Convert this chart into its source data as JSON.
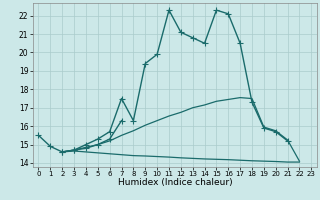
{
  "title": "",
  "xlabel": "Humidex (Indice chaleur)",
  "bg_color": "#cce8e8",
  "grid_color": "#aacccc",
  "line_color": "#1a6b6b",
  "xlim": [
    -0.5,
    23.5
  ],
  "ylim": [
    13.8,
    22.7
  ],
  "xticks": [
    0,
    1,
    2,
    3,
    4,
    5,
    6,
    7,
    8,
    9,
    10,
    11,
    12,
    13,
    14,
    15,
    16,
    17,
    18,
    19,
    20,
    21,
    22,
    23
  ],
  "yticks": [
    14,
    15,
    16,
    17,
    18,
    19,
    20,
    21,
    22
  ],
  "series": [
    {
      "x": [
        0,
        1,
        2,
        3,
        4,
        5,
        6,
        7,
        8,
        9,
        10,
        11,
        12,
        13,
        14,
        15,
        16,
        17,
        18,
        19,
        20,
        21
      ],
      "y": [
        15.5,
        14.9,
        14.6,
        14.7,
        15.0,
        15.3,
        15.7,
        17.5,
        16.3,
        19.4,
        19.9,
        22.3,
        21.1,
        20.8,
        20.5,
        22.3,
        22.1,
        20.5,
        17.3,
        15.9,
        15.7,
        15.2
      ],
      "marker": "+",
      "markersize": 4,
      "linewidth": 1.0
    },
    {
      "x": [
        2,
        3,
        4,
        5,
        6,
        7
      ],
      "y": [
        14.6,
        14.7,
        14.8,
        15.0,
        15.3,
        16.3
      ],
      "marker": "+",
      "markersize": 4,
      "linewidth": 1.0
    },
    {
      "x": [
        2,
        3,
        4,
        5,
        6,
        7,
        8,
        9,
        10,
        11,
        12,
        13,
        14,
        15,
        16,
        17,
        18,
        19,
        20,
        21,
        22
      ],
      "y": [
        14.6,
        14.7,
        14.85,
        15.0,
        15.2,
        15.5,
        15.75,
        16.05,
        16.3,
        16.55,
        16.75,
        17.0,
        17.15,
        17.35,
        17.45,
        17.55,
        17.5,
        15.95,
        15.75,
        15.25,
        14.1
      ],
      "marker": null,
      "markersize": 0,
      "linewidth": 0.9
    },
    {
      "x": [
        2,
        3,
        4,
        5,
        6,
        7,
        8,
        9,
        10,
        11,
        12,
        13,
        14,
        15,
        16,
        17,
        18,
        19,
        20,
        21,
        22
      ],
      "y": [
        14.6,
        14.65,
        14.6,
        14.55,
        14.5,
        14.45,
        14.4,
        14.38,
        14.35,
        14.32,
        14.28,
        14.25,
        14.22,
        14.2,
        14.18,
        14.15,
        14.12,
        14.1,
        14.08,
        14.05,
        14.05
      ],
      "marker": null,
      "markersize": 0,
      "linewidth": 0.9
    }
  ]
}
